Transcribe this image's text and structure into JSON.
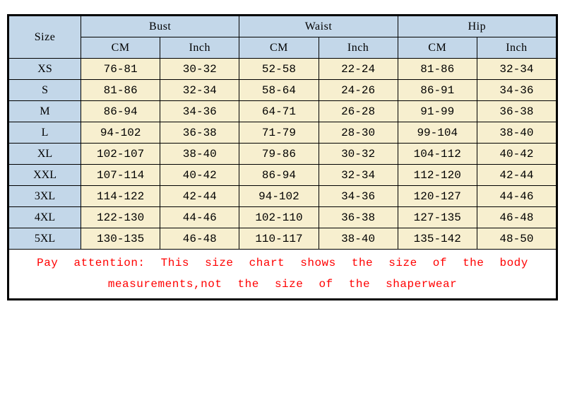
{
  "table": {
    "size_header": "Size",
    "groups": [
      "Bust",
      "Waist",
      "Hip"
    ],
    "units": [
      "CM",
      "Inch"
    ],
    "rows": [
      {
        "size": "XS",
        "bust_cm": "76-81",
        "bust_in": "30-32",
        "waist_cm": "52-58",
        "waist_in": "22-24",
        "hip_cm": "81-86",
        "hip_in": "32-34"
      },
      {
        "size": "S",
        "bust_cm": "81-86",
        "bust_in": "32-34",
        "waist_cm": "58-64",
        "waist_in": "24-26",
        "hip_cm": "86-91",
        "hip_in": "34-36"
      },
      {
        "size": "M",
        "bust_cm": "86-94",
        "bust_in": "34-36",
        "waist_cm": "64-71",
        "waist_in": "26-28",
        "hip_cm": "91-99",
        "hip_in": "36-38"
      },
      {
        "size": "L",
        "bust_cm": "94-102",
        "bust_in": "36-38",
        "waist_cm": "71-79",
        "waist_in": "28-30",
        "hip_cm": "99-104",
        "hip_in": "38-40"
      },
      {
        "size": "XL",
        "bust_cm": "102-107",
        "bust_in": "38-40",
        "waist_cm": "79-86",
        "waist_in": "30-32",
        "hip_cm": "104-112",
        "hip_in": "40-42"
      },
      {
        "size": "XXL",
        "bust_cm": "107-114",
        "bust_in": "40-42",
        "waist_cm": "86-94",
        "waist_in": "32-34",
        "hip_cm": "112-120",
        "hip_in": "42-44"
      },
      {
        "size": "3XL",
        "bust_cm": "114-122",
        "bust_in": "42-44",
        "waist_cm": "94-102",
        "waist_in": "34-36",
        "hip_cm": "120-127",
        "hip_in": "44-46"
      },
      {
        "size": "4XL",
        "bust_cm": "122-130",
        "bust_in": "44-46",
        "waist_cm": "102-110",
        "waist_in": "36-38",
        "hip_cm": "127-135",
        "hip_in": "46-48"
      },
      {
        "size": "5XL",
        "bust_cm": "130-135",
        "bust_in": "46-48",
        "waist_cm": "110-117",
        "waist_in": "38-40",
        "hip_cm": "135-142",
        "hip_in": "48-50"
      }
    ],
    "note": "Pay attention: This size chart shows the size of the body measurements,not the size of the shaperwear",
    "colors": {
      "header_bg": "#c3d7e9",
      "value_bg": "#f7efcf",
      "border": "#000000",
      "note_text": "#ff0000",
      "page_bg": "#ffffff"
    },
    "col_widths_pct": {
      "size": 11.5,
      "val": 12.64
    }
  }
}
